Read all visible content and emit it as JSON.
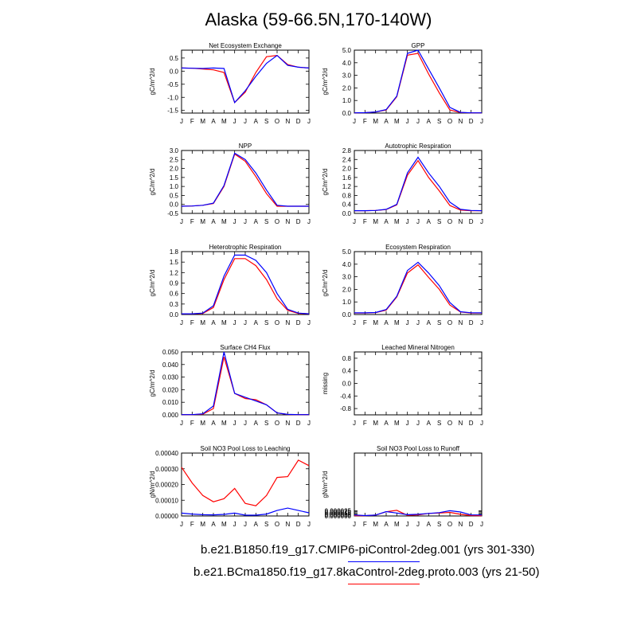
{
  "title": "Alaska (59-66.5N,170-140W)",
  "month_labels": [
    "J",
    "F",
    "M",
    "A",
    "M",
    "J",
    "J",
    "A",
    "S",
    "O",
    "N",
    "D",
    "J"
  ],
  "legend": [
    {
      "label": "b.e21.B1850.f19_g17.CMIP6-piControl-2deg.001 (yrs 301-330)",
      "color": "#0000ff"
    },
    {
      "label": "b.e21.BCma1850.f19_g17.8kaControl-2deg.proto.003 (yrs 21-50)",
      "color": "#ff0000"
    }
  ],
  "chart_data": [
    {
      "type": "line",
      "title": "Net Ecosystem Exchange",
      "ylabel": "gC/m^2/d",
      "ylim": [
        -1.6,
        0.8
      ],
      "yticks": [
        "0.5",
        "0.0",
        "-0.5",
        "-1.0",
        "-1.5"
      ],
      "ytick_values": [
        0.5,
        0.0,
        -0.5,
        -1.0,
        -1.5
      ],
      "series": [
        {
          "color": "#ff0000",
          "values": [
            0.12,
            0.11,
            0.08,
            0.05,
            -0.05,
            -1.2,
            -0.8,
            -0.05,
            0.55,
            0.6,
            0.25,
            0.15,
            0.12
          ]
        },
        {
          "color": "#0000ff",
          "values": [
            0.12,
            0.11,
            0.1,
            0.12,
            0.1,
            -1.2,
            -0.75,
            -0.2,
            0.3,
            0.6,
            0.22,
            0.15,
            0.12
          ]
        }
      ]
    },
    {
      "type": "line",
      "title": "GPP",
      "ylabel": "gC/m^2/d",
      "ylim": [
        0.0,
        5.0
      ],
      "yticks": [
        "5.0",
        "4.0",
        "3.0",
        "2.0",
        "1.0",
        "0.0"
      ],
      "ytick_values": [
        5.0,
        4.0,
        3.0,
        2.0,
        1.0,
        0.0
      ],
      "series": [
        {
          "color": "#ff0000",
          "values": [
            0.02,
            0.03,
            0.08,
            0.25,
            1.3,
            4.6,
            4.75,
            3.1,
            1.6,
            0.25,
            0.04,
            0.02,
            0.02
          ]
        },
        {
          "color": "#0000ff",
          "values": [
            0.02,
            0.03,
            0.09,
            0.28,
            1.35,
            4.75,
            5.0,
            3.5,
            2.0,
            0.45,
            0.06,
            0.02,
            0.02
          ]
        }
      ]
    },
    {
      "type": "line",
      "title": "NPP",
      "ylabel": "gC/m^2/d",
      "ylim": [
        -0.5,
        3.0
      ],
      "yticks": [
        "3.0",
        "2.5",
        "2.0",
        "1.5",
        "1.0",
        "0.5",
        "0.0",
        "-0.5"
      ],
      "ytick_values": [
        3.0,
        2.5,
        2.0,
        1.5,
        1.0,
        0.5,
        0.0,
        -0.5
      ],
      "series": [
        {
          "color": "#ff0000",
          "values": [
            -0.1,
            -0.09,
            -0.05,
            0.05,
            1.0,
            2.8,
            2.4,
            1.55,
            0.6,
            -0.1,
            -0.1,
            -0.1,
            -0.1
          ]
        },
        {
          "color": "#0000ff",
          "values": [
            -0.1,
            -0.09,
            -0.05,
            0.07,
            1.05,
            2.85,
            2.5,
            1.75,
            0.8,
            -0.05,
            -0.1,
            -0.1,
            -0.1
          ]
        }
      ]
    },
    {
      "type": "line",
      "title": "Autotrophic Respiration",
      "ylabel": "gC/m^2/d",
      "ylim": [
        0.0,
        2.8
      ],
      "yticks": [
        "2.8",
        "2.4",
        "2.0",
        "1.6",
        "1.2",
        "0.8",
        "0.4",
        "0.0"
      ],
      "ytick_values": [
        2.8,
        2.4,
        2.0,
        1.6,
        1.2,
        0.8,
        0.4,
        0.0
      ],
      "series": [
        {
          "color": "#ff0000",
          "values": [
            0.12,
            0.12,
            0.13,
            0.17,
            0.38,
            1.7,
            2.35,
            1.6,
            1.0,
            0.35,
            0.15,
            0.12,
            0.12
          ]
        },
        {
          "color": "#0000ff",
          "values": [
            0.12,
            0.12,
            0.13,
            0.18,
            0.4,
            1.8,
            2.5,
            1.8,
            1.2,
            0.5,
            0.18,
            0.13,
            0.12
          ]
        }
      ]
    },
    {
      "type": "line",
      "title": "Heterotrophic Respiration",
      "ylabel": "gC/m^2/d",
      "ylim": [
        0.0,
        1.8
      ],
      "yticks": [
        "1.8",
        "1.5",
        "1.2",
        "0.9",
        "0.6",
        "0.3",
        "0.0"
      ],
      "ytick_values": [
        1.8,
        1.5,
        1.2,
        0.9,
        0.6,
        0.3,
        0.0
      ],
      "series": [
        {
          "color": "#ff0000",
          "values": [
            0.02,
            0.02,
            0.03,
            0.2,
            1.0,
            1.6,
            1.6,
            1.4,
            1.0,
            0.45,
            0.12,
            0.03,
            0.02
          ]
        },
        {
          "color": "#0000ff",
          "values": [
            0.02,
            0.02,
            0.04,
            0.25,
            1.1,
            1.7,
            1.7,
            1.55,
            1.2,
            0.6,
            0.15,
            0.04,
            0.02
          ]
        }
      ]
    },
    {
      "type": "line",
      "title": "Ecosystem Respiration",
      "ylabel": "gC/m^2/d",
      "ylim": [
        0.0,
        5.0
      ],
      "yticks": [
        "5.0",
        "4.0",
        "3.0",
        "2.0",
        "1.0",
        "0.0"
      ],
      "ytick_values": [
        5.0,
        4.0,
        3.0,
        2.0,
        1.0,
        0.0
      ],
      "series": [
        {
          "color": "#ff0000",
          "values": [
            0.12,
            0.12,
            0.15,
            0.35,
            1.4,
            3.3,
            3.95,
            2.95,
            2.0,
            0.75,
            0.2,
            0.12,
            0.12
          ]
        },
        {
          "color": "#0000ff",
          "values": [
            0.13,
            0.13,
            0.16,
            0.4,
            1.45,
            3.5,
            4.15,
            3.3,
            2.3,
            0.95,
            0.22,
            0.14,
            0.13
          ]
        }
      ]
    },
    {
      "type": "line",
      "title": "Surface CH4 Flux",
      "ylabel": "gC/m^2/d",
      "ylim": [
        0.0,
        0.05
      ],
      "yticks": [
        "0.050",
        "0.040",
        "0.030",
        "0.020",
        "0.010",
        "0.000"
      ],
      "ytick_values": [
        0.05,
        0.04,
        0.03,
        0.02,
        0.01,
        0.0
      ],
      "series": [
        {
          "color": "#ff0000",
          "values": [
            0.0002,
            0.0002,
            0.0005,
            0.005,
            0.046,
            0.017,
            0.013,
            0.012,
            0.008,
            0.0015,
            0.0003,
            0.0002,
            0.0002
          ]
        },
        {
          "color": "#0000ff",
          "values": [
            0.0002,
            0.0002,
            0.0008,
            0.007,
            0.05,
            0.017,
            0.014,
            0.011,
            0.008,
            0.0015,
            0.0004,
            0.0002,
            0.0002
          ]
        }
      ]
    },
    {
      "type": "line",
      "title": "Leached Mineral Nitrogen",
      "ylabel": "missing",
      "ylim": [
        -1.0,
        1.0
      ],
      "yticks": [
        "0.8",
        "0.4",
        "0.0",
        "-0.4",
        "-0.8"
      ],
      "ytick_values": [
        0.8,
        0.4,
        0.0,
        -0.4,
        -0.8
      ],
      "series": []
    },
    {
      "type": "line",
      "title": "Soil NO3 Pool Loss to Leaching",
      "ylabel": "gN/m^2/d",
      "ylim": [
        0.0,
        0.0004
      ],
      "yticks": [
        "0.00040",
        "0.00030",
        "0.00020",
        "0.00010",
        "0.00000"
      ],
      "ytick_values": [
        0.0004,
        0.0003,
        0.0002,
        0.0001,
        0.0
      ],
      "series": [
        {
          "color": "#ff0000",
          "values": [
            0.00031,
            0.00021,
            0.00013,
            9e-05,
            0.00011,
            0.000175,
            8e-05,
            6.5e-05,
            0.00013,
            0.000245,
            0.00025,
            0.000355,
            0.00032
          ]
        },
        {
          "color": "#0000ff",
          "values": [
            1.8e-05,
            1.2e-05,
            8e-06,
            7e-06,
            1e-05,
            1.8e-05,
            5e-06,
            5e-06,
            1.2e-05,
            3.5e-05,
            5e-05,
            3.5e-05,
            2e-05
          ]
        }
      ]
    },
    {
      "type": "line",
      "title": "Soil NO3 Pool Loss to Runoff",
      "ylabel": "gN/m^2/d",
      "ylim": [
        0.0,
        0.0003
      ],
      "yticks": [
        "0.000025",
        "0.000020",
        "0.000015",
        "0.000010",
        "0.000005",
        "0.000000"
      ],
      "ytick_values": [
        2.5e-05,
        2e-05,
        1.5e-05,
        1e-05,
        5e-06,
        0.0
      ],
      "series": [
        {
          "color": "#ff0000",
          "values": [
            1e-06,
            1e-06,
            4e-06,
            2e-05,
            2.7e-05,
            3e-06,
            5e-06,
            1.2e-05,
            1.4e-05,
            1.7e-05,
            8e-06,
            2e-06,
            1e-06
          ]
        },
        {
          "color": "#0000ff",
          "values": [
            5e-06,
            2e-06,
            4e-06,
            2.1e-05,
            1.4e-05,
            6e-06,
            8e-06,
            1.2e-05,
            1.6e-05,
            2.5e-05,
            1.9e-05,
            5e-06,
            5e-06
          ]
        }
      ]
    }
  ]
}
